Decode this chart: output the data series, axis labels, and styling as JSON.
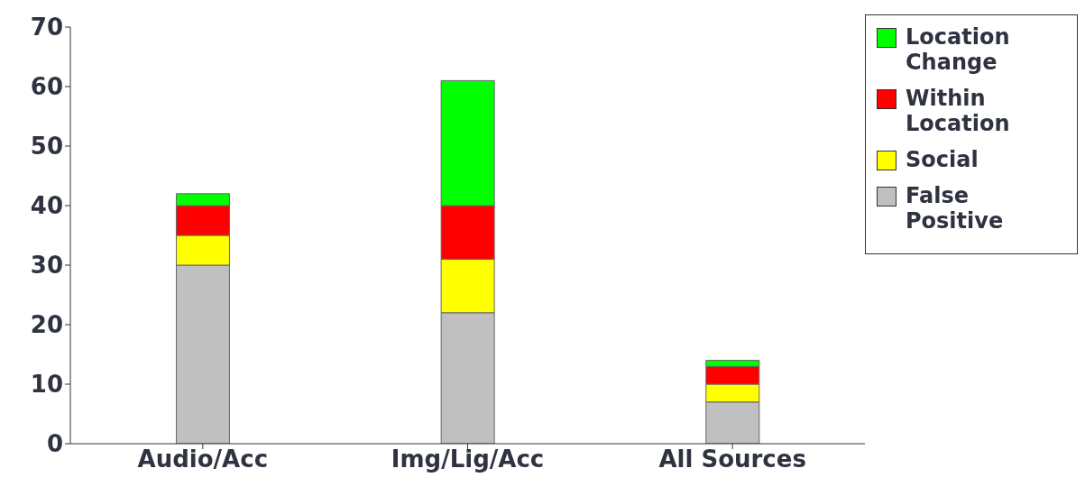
{
  "chart_data": {
    "type": "bar",
    "stacked": true,
    "categories": [
      "Audio/Acc",
      "Img/Lig/Acc",
      "All Sources"
    ],
    "series": [
      {
        "name": "False Positive",
        "color": "#c0c0c0",
        "values": [
          30,
          22,
          7
        ]
      },
      {
        "name": "Social",
        "color": "#ffff00",
        "values": [
          5,
          9,
          3
        ]
      },
      {
        "name": "Within Location",
        "color": "#ff0000",
        "values": [
          5,
          9,
          3
        ]
      },
      {
        "name": "Location Change",
        "color": "#00ff00",
        "values": [
          2,
          21,
          1
        ]
      }
    ],
    "ylim": [
      0,
      70
    ],
    "yticks": [
      0,
      10,
      20,
      30,
      40,
      50,
      60,
      70
    ],
    "legend": "top right"
  }
}
